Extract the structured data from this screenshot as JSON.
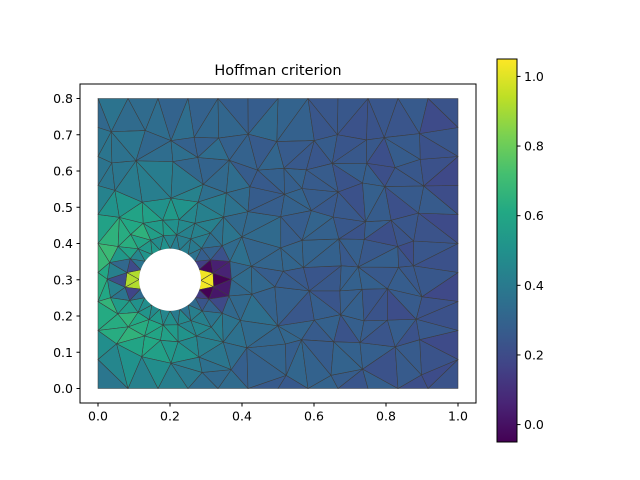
{
  "figure": {
    "title": "Hoffman criterion",
    "background_color": "#ffffff"
  },
  "chart_data": {
    "type": "heatmap",
    "plot_kind": "triangulated-finite-element-mesh-pseudocolor",
    "title": "Hoffman criterion",
    "xlabel": "",
    "ylabel": "",
    "grid": false,
    "legend": false,
    "xlim": [
      -0.05,
      1.05
    ],
    "ylim": [
      -0.04,
      0.84
    ],
    "xtick_values": [
      0.0,
      0.2,
      0.4,
      0.6,
      0.8,
      1.0
    ],
    "xtick_labels": [
      "0.0",
      "0.2",
      "0.4",
      "0.6",
      "0.8",
      "1.0"
    ],
    "ytick_values": [
      0.0,
      0.1,
      0.2,
      0.3,
      0.4,
      0.5,
      0.6,
      0.7,
      0.8
    ],
    "ytick_labels": [
      "0.0",
      "0.1",
      "0.2",
      "0.3",
      "0.4",
      "0.5",
      "0.6",
      "0.7",
      "0.8"
    ],
    "colorbar": {
      "vmin": -0.05,
      "vmax": 1.05,
      "tick_values": [
        0.0,
        0.2,
        0.4,
        0.6,
        0.8,
        1.0
      ],
      "tick_labels": [
        "0.0",
        "0.2",
        "0.4",
        "0.6",
        "0.8",
        "1.0"
      ],
      "colormap": "viridis",
      "stops": [
        [
          0,
          "#440154"
        ],
        [
          0.1,
          "#482475"
        ],
        [
          0.2,
          "#414487"
        ],
        [
          0.3,
          "#355f8d"
        ],
        [
          0.4,
          "#2a788e"
        ],
        [
          0.5,
          "#21918c"
        ],
        [
          0.6,
          "#22a884"
        ],
        [
          0.7,
          "#44bf70"
        ],
        [
          0.8,
          "#7ad151"
        ],
        [
          0.9,
          "#bddf26"
        ],
        [
          1,
          "#fde725"
        ]
      ]
    },
    "domain": {
      "x": [
        0,
        1
      ],
      "y": [
        0,
        0.8
      ],
      "hole": {
        "cx": 0.2,
        "cy": 0.3,
        "r": 0.086
      }
    },
    "mesh": {
      "seed": 7,
      "border_nx": 13,
      "border_ny": 11,
      "rings": [
        [
          0.086,
          20
        ],
        [
          0.124,
          20
        ],
        [
          0.17,
          22
        ],
        [
          0.228,
          18
        ]
      ],
      "ring_margin": 0.025,
      "grid_dx": 0.077,
      "grid_dy": 0.072,
      "grid_margin": 0.045,
      "jitter": 0.02,
      "hole_clear": 0.27,
      "edge_color": "#3c3c3c",
      "edge_width": 0.55
    },
    "field": {
      "base": {
        "a": 0.35,
        "x_slope": -0.13
      },
      "halo": {
        "amp": 0.38,
        "r0": 0.17,
        "sigma": 0.1,
        "angle_bias_deg": 180,
        "bias_min": 0.12
      },
      "dark_lobes": {
        "amp": 0.6,
        "r0": 0.115,
        "sigma": 0.05,
        "cos_power": 8
      },
      "spikes": [
        {
          "angle_deg": 0,
          "value": 1.03,
          "half_width_deg": 11,
          "r_max": 0.115
        },
        {
          "angle_deg": 180,
          "value": 0.92,
          "half_width_deg": 11,
          "r_max": 0.115
        }
      ],
      "noise_amp": 0.07
    }
  }
}
